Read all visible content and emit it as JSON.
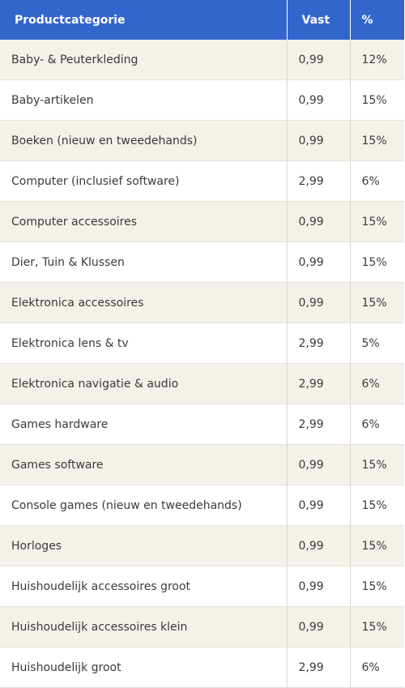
{
  "table": {
    "headers": [
      "Productcategorie",
      "Vast",
      "%"
    ],
    "rows": [
      [
        "Baby- & Peuterkleding",
        "0,99",
        "12%"
      ],
      [
        "Baby-artikelen",
        "0,99",
        "15%"
      ],
      [
        "Boeken (nieuw en tweedehands)",
        "0,99",
        "15%"
      ],
      [
        "Computer (inclusief software)",
        "2,99",
        "6%"
      ],
      [
        "Computer accessoires",
        "0,99",
        "15%"
      ],
      [
        "Dier, Tuin & Klussen",
        "0,99",
        "15%"
      ],
      [
        "Elektronica accessoires",
        "0,99",
        "15%"
      ],
      [
        "Elektronica lens & tv",
        "2,99",
        "5%"
      ],
      [
        "Elektronica navigatie & audio",
        "2,99",
        "6%"
      ],
      [
        "Games hardware",
        "2,99",
        "6%"
      ],
      [
        "Games software",
        "0,99",
        "15%"
      ],
      [
        "Console games (nieuw en tweedehands)",
        "0,99",
        "15%"
      ],
      [
        "Horloges",
        "0,99",
        "15%"
      ],
      [
        "Huishoudelijk accessoires groot",
        "0,99",
        "15%"
      ],
      [
        "Huishoudelijk accessoires klein",
        "0,99",
        "15%"
      ],
      [
        "Huishoudelijk groot",
        "2,99",
        "6%"
      ]
    ]
  },
  "colors": {
    "header_bg": "#3366cc",
    "header_text": "#ffffff",
    "row_alt_bg": "#f4f1ea",
    "row_bg": "#ffffff",
    "text": "#3a3a3a"
  }
}
